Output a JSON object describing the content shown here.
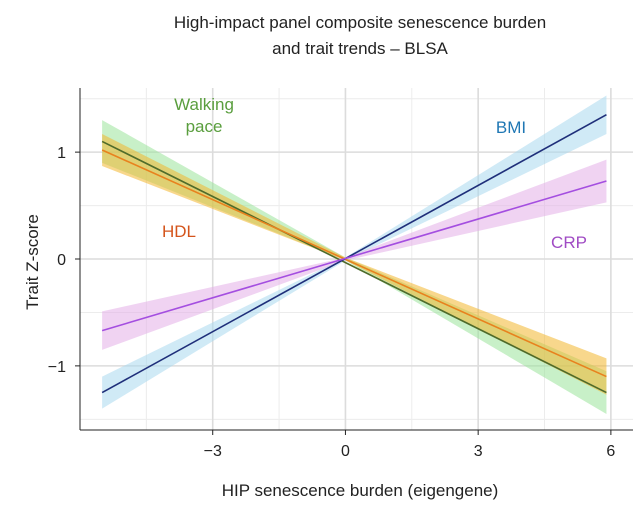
{
  "chart_data": {
    "type": "line",
    "title_lines": [
      "High-impact panel composite senescence burden",
      "and trait trends – BLSA"
    ],
    "xlabel": "HIP senescence burden (eigengene)",
    "ylabel": "Trait Z-score",
    "xlim": [
      -6.0,
      6.5
    ],
    "ylim": [
      -1.6,
      1.6
    ],
    "x_ticks": [
      -3,
      0,
      3,
      6
    ],
    "x_tick_labels": [
      "−3",
      "0",
      "3",
      "6"
    ],
    "y_ticks": [
      -1,
      0,
      1
    ],
    "y_tick_labels": [
      "−1",
      "0",
      "1"
    ],
    "x_minor_gridlines": [
      -4.5,
      -1.5,
      1.5,
      4.5
    ],
    "y_minor_gridlines": [
      -1.5,
      -0.5,
      0.5,
      1.5
    ],
    "grid": true,
    "series": [
      {
        "name": "Walking pace",
        "label_lines": [
          "Walking",
          "pace"
        ],
        "color": "#5a9e3e",
        "band_color": "#9be39b",
        "line_color": "#4f6b2a",
        "x": [
          -5.5,
          5.9
        ],
        "y": [
          1.1,
          -1.25
        ],
        "band_start": 0.2,
        "band_end": 0.2
      },
      {
        "name": "HDL",
        "label_lines": [
          "HDL"
        ],
        "color": "#d4541b",
        "band_color": "#f2b62e",
        "line_color": "#e8821e",
        "x": [
          -5.5,
          5.9
        ],
        "y": [
          1.02,
          -1.1
        ],
        "band_start": 0.15,
        "band_end": 0.17
      },
      {
        "name": "BMI",
        "label_lines": [
          "BMI"
        ],
        "color": "#1f77b4",
        "band_color": "#a9d8ee",
        "line_color": "#1f2f7a",
        "x": [
          -5.5,
          5.9
        ],
        "y": [
          -1.25,
          1.35
        ],
        "band_start": 0.15,
        "band_end": 0.18
      },
      {
        "name": "CRP",
        "label_lines": [
          "CRP"
        ],
        "color": "#a04bc4",
        "band_color": "#e4aee8",
        "line_color": "#a44ee0",
        "x": [
          -5.5,
          5.9
        ],
        "y": [
          -0.67,
          0.73
        ],
        "band_start": 0.18,
        "band_end": 0.2
      }
    ]
  }
}
